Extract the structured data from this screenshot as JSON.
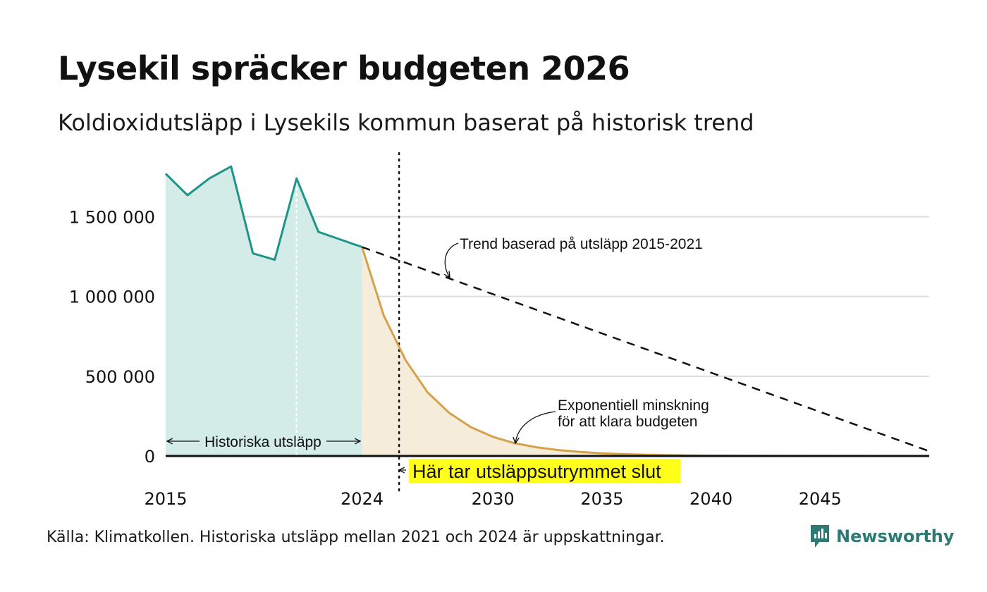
{
  "header": {
    "title": "Lysekil spräcker budgeten 2026",
    "subtitle": "Koldioxidutsläpp i Lysekils kommun baserat på historisk trend"
  },
  "footer": {
    "source": "Källa: Klimatkollen. Historiska utsläpp mellan 2021 och 2024 är uppskattningar.",
    "brand": "Newsworthy"
  },
  "colors": {
    "historical_line": "#1f9488",
    "historical_fill": "#d3ece7",
    "decay_line": "#d4a24c",
    "decay_fill": "#f6ecda",
    "trend_line": "#111111",
    "highlight": "#ffff1a",
    "gridline": "#dddddd",
    "brand": "#2c7a73"
  },
  "chart_data": {
    "type": "line",
    "xlim": [
      2015,
      2050
    ],
    "ylim": [
      0,
      1900000
    ],
    "x_ticks": [
      {
        "value": 2015,
        "label": "2015"
      },
      {
        "value": 2024,
        "label": "2024"
      },
      {
        "value": 2030,
        "label": "2030"
      },
      {
        "value": 2035,
        "label": "2035"
      },
      {
        "value": 2040,
        "label": "2040"
      },
      {
        "value": 2045,
        "label": "2045"
      }
    ],
    "y_ticks": [
      {
        "value": 0,
        "label": "0"
      },
      {
        "value": 500000,
        "label": "500 000"
      },
      {
        "value": 1000000,
        "label": "1 000 000"
      },
      {
        "value": 1500000,
        "label": "1 500 000"
      }
    ],
    "grid": true,
    "series": [
      {
        "key": "historical",
        "style": "solid-area",
        "points": [
          [
            2015,
            1770000
          ],
          [
            2016,
            1635000
          ],
          [
            2017,
            1740000
          ],
          [
            2018,
            1815000
          ],
          [
            2019,
            1270000
          ],
          [
            2020,
            1230000
          ],
          [
            2021,
            1740000
          ],
          [
            2022,
            1405000
          ],
          [
            2024,
            1310000
          ]
        ]
      },
      {
        "key": "exponential",
        "style": "solid-area",
        "points": [
          [
            2024,
            1310000
          ],
          [
            2025,
            880000
          ],
          [
            2026,
            600000
          ],
          [
            2027,
            400000
          ],
          [
            2028,
            270000
          ],
          [
            2029,
            180000
          ],
          [
            2030,
            120000
          ],
          [
            2031,
            80000
          ],
          [
            2032,
            55000
          ],
          [
            2033,
            37000
          ],
          [
            2034,
            25000
          ],
          [
            2035,
            17000
          ],
          [
            2036,
            11500
          ],
          [
            2037,
            7800
          ],
          [
            2038,
            5300
          ],
          [
            2039,
            3600
          ],
          [
            2040,
            2400
          ],
          [
            2042,
            1100
          ],
          [
            2045,
            350
          ],
          [
            2050,
            50
          ]
        ]
      },
      {
        "key": "trend",
        "style": "dashed",
        "points": [
          [
            2024,
            1310000
          ],
          [
            2050,
            30000
          ]
        ]
      }
    ],
    "reference_lines": [
      {
        "key": "year-2021",
        "x": 2021,
        "style": "white-dotted"
      },
      {
        "key": "budget-end",
        "x": 2025.7,
        "style": "black-dotted"
      }
    ],
    "annotations": {
      "trend": "Trend baserad på utsläpp 2015-2021",
      "exponential_line1": "Exponentiell minskning",
      "exponential_line2": "för att klara budgeten",
      "historical": "Historiska utsläpp",
      "budget_end": "Här tar utsläppsutrymmet slut"
    }
  }
}
